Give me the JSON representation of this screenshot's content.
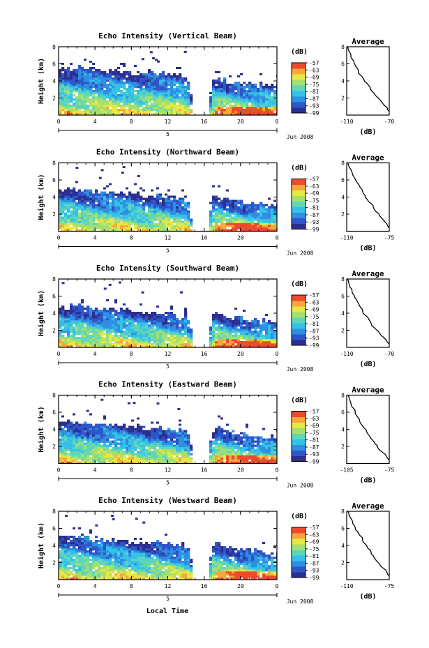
{
  "figure": {
    "xlabel": "Local Time",
    "month_label": "Jun 2008",
    "date_label": "5",
    "time_ticks": [
      "0",
      "4",
      "8",
      "12",
      "16",
      "20",
      "0"
    ],
    "height_ylabel": "Height (km)",
    "height_ticks": [
      "2",
      "4",
      "6",
      "8"
    ],
    "colorbar_unit": "(dB)",
    "colorbar_ticks": [
      "-57",
      "-63",
      "-69",
      "-75",
      "-81",
      "-87",
      "-93",
      "-99"
    ],
    "average_title": "Average",
    "average_xlabel": "(dB)"
  },
  "colors": {
    "scale": [
      "#2b2f8f",
      "#2f56c8",
      "#2f8fe0",
      "#35c1e8",
      "#5fd6b8",
      "#a4e070",
      "#e6e845",
      "#f6a83a",
      "#ee4a2d"
    ]
  },
  "chart_data": [
    {
      "type": "heatmap",
      "title": "Echo Intensity (Vertical Beam)",
      "x_range": [
        0,
        24
      ],
      "y_range": [
        0,
        8
      ],
      "data_gap_hours": [
        14.5,
        16.5
      ],
      "echo_top_km": [
        5.3,
        5.6,
        5.7,
        5.6,
        5.5,
        5.3,
        5.4,
        5.2,
        5.1,
        5.0,
        4.9,
        5.0,
        4.8,
        4.7,
        4.6,
        0,
        0,
        4.6,
        4.2,
        4.0,
        3.9,
        3.9,
        3.8,
        3.7,
        3.6
      ],
      "colorbar": {
        "min": -99,
        "max": -57
      },
      "average": {
        "xticks": [
          "-110",
          "-70"
        ],
        "xlim": [
          -110,
          -70
        ],
        "ylim": [
          0,
          8
        ],
        "values": [
          -70,
          -72,
          -76,
          -79,
          -83,
          -86,
          -88,
          -91,
          -94,
          -97,
          -99,
          -101,
          -103,
          -105,
          -106,
          -108,
          -109
        ]
      }
    },
    {
      "type": "heatmap",
      "title": "Echo Intensity (Northward Beam)",
      "x_range": [
        0,
        24
      ],
      "y_range": [
        0,
        8
      ],
      "data_gap_hours": [
        14.5,
        16.5
      ],
      "echo_top_km": [
        4.9,
        5.1,
        5.0,
        4.9,
        4.8,
        4.6,
        4.7,
        4.5,
        4.4,
        4.3,
        4.2,
        4.3,
        4.1,
        4.0,
        3.9,
        0,
        0,
        4.5,
        4.0,
        3.8,
        3.6,
        3.5,
        3.4,
        3.2,
        3.1
      ],
      "colorbar": {
        "min": -99,
        "max": -57
      },
      "average": {
        "xticks": [
          "-110",
          "-75"
        ],
        "xlim": [
          -110,
          -75
        ],
        "ylim": [
          0,
          8
        ],
        "values": [
          -75,
          -77,
          -80,
          -83,
          -86,
          -88,
          -90,
          -93,
          -95,
          -97,
          -99,
          -101,
          -103,
          -105,
          -106,
          -108,
          -109
        ]
      }
    },
    {
      "type": "heatmap",
      "title": "Echo Intensity (Southward Beam)",
      "x_range": [
        0,
        24
      ],
      "y_range": [
        0,
        8
      ],
      "data_gap_hours": [
        14.5,
        16.5
      ],
      "echo_top_km": [
        4.7,
        4.9,
        5.0,
        4.8,
        4.7,
        4.6,
        4.6,
        4.4,
        4.3,
        4.3,
        4.2,
        4.2,
        4.0,
        3.9,
        3.9,
        0,
        0,
        4.3,
        3.9,
        3.6,
        3.5,
        3.4,
        3.3,
        3.1,
        3.0
      ],
      "colorbar": {
        "min": -99,
        "max": -57
      },
      "average": {
        "xticks": [
          "-110",
          "-70"
        ],
        "xlim": [
          -110,
          -70
        ],
        "ylim": [
          0,
          8
        ],
        "values": [
          -70,
          -73,
          -77,
          -80,
          -84,
          -87,
          -89,
          -92,
          -95,
          -97,
          -99,
          -101,
          -103,
          -105,
          -107,
          -108,
          -109
        ]
      }
    },
    {
      "type": "heatmap",
      "title": "Echo Intensity (Eastward Beam)",
      "x_range": [
        0,
        24
      ],
      "y_range": [
        0,
        8
      ],
      "data_gap_hours": [
        14.5,
        16.5
      ],
      "echo_top_km": [
        4.8,
        5.0,
        5.1,
        4.9,
        4.8,
        4.6,
        4.7,
        4.5,
        4.4,
        4.3,
        4.2,
        4.3,
        4.1,
        4.0,
        3.9,
        0,
        0,
        4.6,
        4.1,
        3.8,
        3.6,
        3.5,
        3.4,
        3.2,
        3.1
      ],
      "colorbar": {
        "min": -99,
        "max": -57
      },
      "average": {
        "xticks": [
          "-105",
          "-75"
        ],
        "xlim": [
          -105,
          -75
        ],
        "ylim": [
          0,
          8
        ],
        "values": [
          -75,
          -77,
          -80,
          -83,
          -85,
          -87,
          -89,
          -91,
          -93,
          -95,
          -96,
          -98,
          -99,
          -101,
          -102,
          -103,
          -104
        ]
      }
    },
    {
      "type": "heatmap",
      "title": "Echo Intensity (Westward Beam)",
      "x_range": [
        0,
        24
      ],
      "y_range": [
        0,
        8
      ],
      "data_gap_hours": [
        14.5,
        16.5
      ],
      "echo_top_km": [
        5.0,
        5.2,
        5.3,
        5.1,
        5.0,
        4.8,
        4.9,
        4.7,
        4.6,
        4.5,
        4.4,
        4.5,
        4.3,
        4.2,
        4.1,
        0,
        0,
        4.5,
        4.0,
        3.8,
        3.6,
        3.5,
        3.4,
        3.2,
        3.1
      ],
      "colorbar": {
        "min": -99,
        "max": -57
      },
      "average": {
        "xticks": [
          "-110",
          "-75"
        ],
        "xlim": [
          -110,
          -75
        ],
        "ylim": [
          0,
          8
        ],
        "values": [
          -75,
          -77,
          -80,
          -83,
          -86,
          -88,
          -90,
          -93,
          -95,
          -97,
          -99,
          -101,
          -103,
          -105,
          -106,
          -108,
          -109
        ]
      }
    }
  ]
}
